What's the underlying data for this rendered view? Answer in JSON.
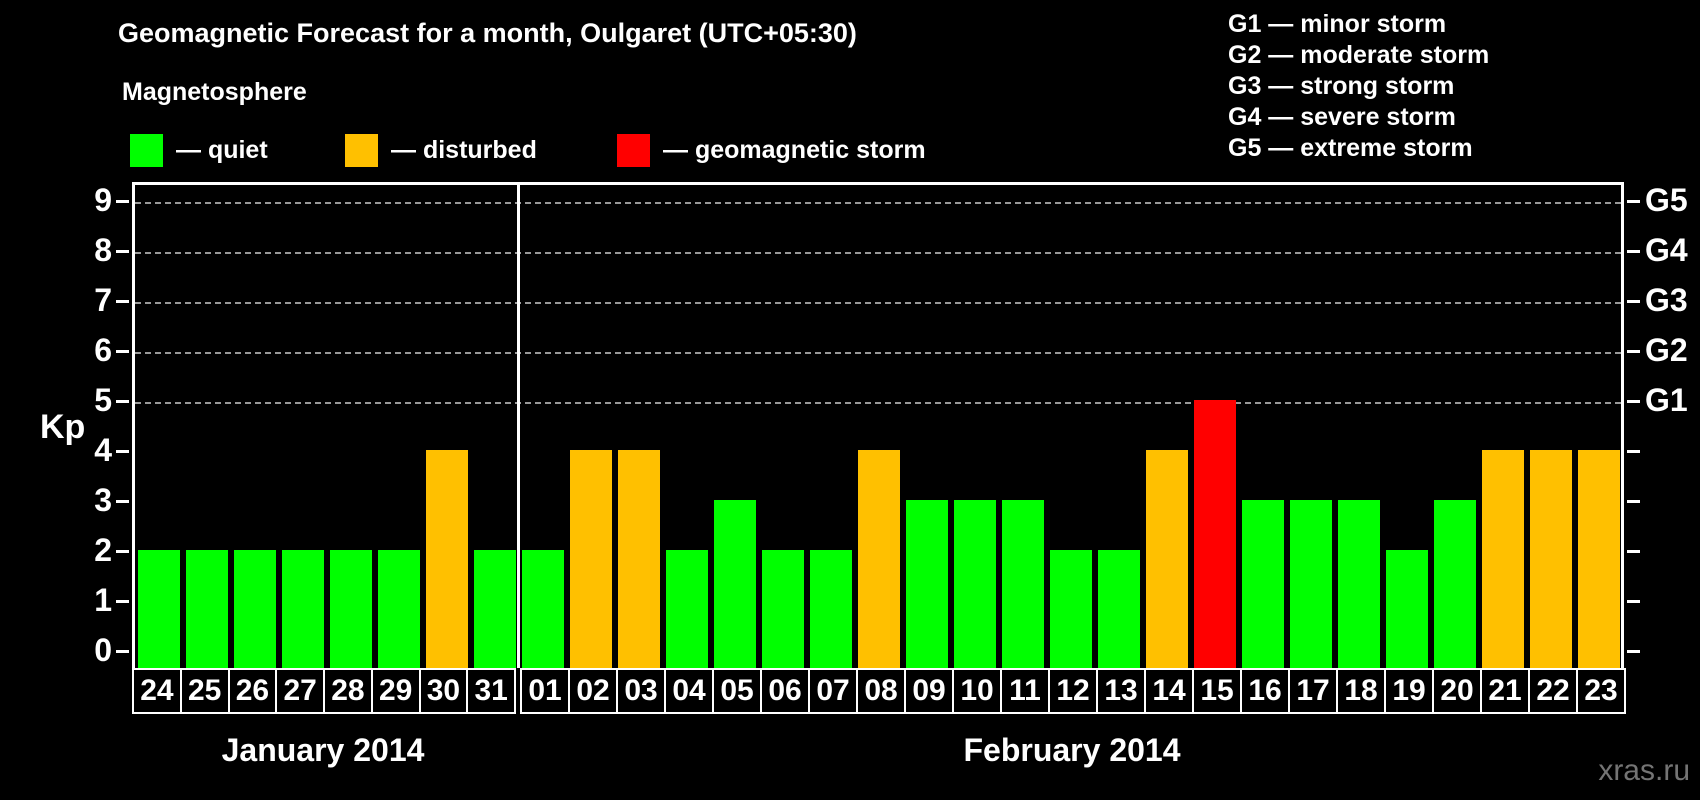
{
  "header": {
    "title": "Geomagnetic Forecast for a month, Oulgaret (UTC+05:30)",
    "subtitle": "Magnetosphere"
  },
  "legend": {
    "items": [
      {
        "name": "quiet",
        "label": "— quiet",
        "color": "#00ff00"
      },
      {
        "name": "disturbed",
        "label": "— disturbed",
        "color": "#ffc000"
      },
      {
        "name": "storm",
        "label": "— geomagnetic storm",
        "color": "#ff0000"
      }
    ]
  },
  "storm_scale_legend": {
    "items": [
      {
        "label": "G1 — minor storm"
      },
      {
        "label": "G2 — moderate storm"
      },
      {
        "label": "G3 — strong storm"
      },
      {
        "label": "G4 — severe storm"
      },
      {
        "label": "G5 — extreme storm"
      }
    ]
  },
  "chart_data": {
    "type": "bar",
    "title": "Geomagnetic Forecast for a month, Oulgaret (UTC+05:30)",
    "ylabel": "Kp",
    "ylim": [
      0,
      9
    ],
    "yticks": [
      0,
      1,
      2,
      3,
      4,
      5,
      6,
      7,
      8,
      9
    ],
    "gridlines_dashed_at_kp": [
      5,
      6,
      7,
      8,
      9
    ],
    "grid": "dashed horizontal lines only at Kp 5-9",
    "right_axis_labels": [
      {
        "kp": 9,
        "label": "G5"
      },
      {
        "kp": 8,
        "label": "G4"
      },
      {
        "kp": 7,
        "label": "G3"
      },
      {
        "kp": 6,
        "label": "G2"
      },
      {
        "kp": 5,
        "label": "G1"
      }
    ],
    "status_colors": {
      "quiet": "#00ff00",
      "disturbed": "#ffc000",
      "storm": "#ff0000"
    },
    "months": [
      {
        "label": "January 2014",
        "bars": [
          {
            "day": "24",
            "kp": 2,
            "status": "quiet"
          },
          {
            "day": "25",
            "kp": 2,
            "status": "quiet"
          },
          {
            "day": "26",
            "kp": 2,
            "status": "quiet"
          },
          {
            "day": "27",
            "kp": 2,
            "status": "quiet"
          },
          {
            "day": "28",
            "kp": 2,
            "status": "quiet"
          },
          {
            "day": "29",
            "kp": 2,
            "status": "quiet"
          },
          {
            "day": "30",
            "kp": 4,
            "status": "disturbed"
          },
          {
            "day": "31",
            "kp": 2,
            "status": "quiet"
          }
        ]
      },
      {
        "label": "February 2014",
        "bars": [
          {
            "day": "01",
            "kp": 2,
            "status": "quiet"
          },
          {
            "day": "02",
            "kp": 4,
            "status": "disturbed"
          },
          {
            "day": "03",
            "kp": 4,
            "status": "disturbed"
          },
          {
            "day": "04",
            "kp": 2,
            "status": "quiet"
          },
          {
            "day": "05",
            "kp": 3,
            "status": "quiet"
          },
          {
            "day": "06",
            "kp": 2,
            "status": "quiet"
          },
          {
            "day": "07",
            "kp": 2,
            "status": "quiet"
          },
          {
            "day": "08",
            "kp": 4,
            "status": "disturbed"
          },
          {
            "day": "09",
            "kp": 3,
            "status": "quiet"
          },
          {
            "day": "10",
            "kp": 3,
            "status": "quiet"
          },
          {
            "day": "11",
            "kp": 3,
            "status": "quiet"
          },
          {
            "day": "12",
            "kp": 2,
            "status": "quiet"
          },
          {
            "day": "13",
            "kp": 2,
            "status": "quiet"
          },
          {
            "day": "14",
            "kp": 4,
            "status": "disturbed"
          },
          {
            "day": "15",
            "kp": 5,
            "status": "storm"
          },
          {
            "day": "16",
            "kp": 3,
            "status": "quiet"
          },
          {
            "day": "17",
            "kp": 3,
            "status": "quiet"
          },
          {
            "day": "18",
            "kp": 3,
            "status": "quiet"
          },
          {
            "day": "19",
            "kp": 2,
            "status": "quiet"
          },
          {
            "day": "20",
            "kp": 3,
            "status": "quiet"
          },
          {
            "day": "21",
            "kp": 4,
            "status": "disturbed"
          },
          {
            "day": "22",
            "kp": 4,
            "status": "disturbed"
          },
          {
            "day": "23",
            "kp": 4,
            "status": "disturbed"
          }
        ]
      }
    ]
  },
  "watermark": "xras.ru"
}
